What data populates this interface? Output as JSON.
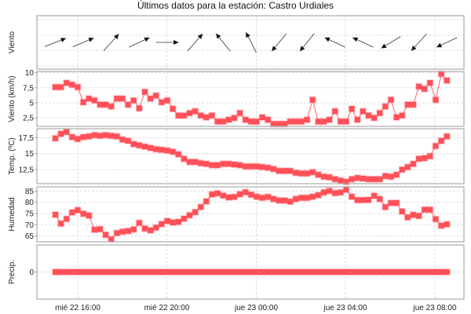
{
  "title": "Últimos datos para la estación: Castro Urdiales",
  "colors": {
    "series": "#ff5058",
    "line": "#ff7a80",
    "border": "#aaaaaa",
    "grid": "#dddddd"
  },
  "chart_data": {
    "type": "line",
    "grid": true,
    "x_ticks": [
      "mié 22 16:00",
      "mié 22 20:00",
      "jue 23 00:00",
      "jue 23 04:00",
      "jue 23 08:00"
    ],
    "x": [
      "mié 22 15:00",
      "mié 22 15:15",
      "mié 22 15:30",
      "mié 22 15:45",
      "mié 22 16:00",
      "mié 22 16:15",
      "mié 22 16:30",
      "mié 22 16:45",
      "mié 22 17:00",
      "mié 22 17:15",
      "mié 22 17:30",
      "mié 22 17:45",
      "mié 22 18:00",
      "mié 22 18:15",
      "mié 22 18:30",
      "mié 22 18:45",
      "mié 22 19:00",
      "mié 22 19:15",
      "mié 22 19:30",
      "mié 22 19:45",
      "mié 22 20:00",
      "mié 22 20:15",
      "mié 22 20:30",
      "mié 22 20:45",
      "mié 22 21:00",
      "mié 22 21:15",
      "mié 22 21:30",
      "mié 22 21:45",
      "mié 22 22:00",
      "mié 22 22:15",
      "mié 22 22:30",
      "mié 22 22:45",
      "mié 22 23:00",
      "mié 22 23:15",
      "mié 22 23:30",
      "mié 22 23:45",
      "jue 23 00:00",
      "jue 23 00:15",
      "jue 23 00:30",
      "jue 23 00:45",
      "jue 23 01:00",
      "jue 23 01:15",
      "jue 23 01:30",
      "jue 23 01:45",
      "jue 23 02:00",
      "jue 23 02:15",
      "jue 23 02:30",
      "jue 23 02:45",
      "jue 23 03:00",
      "jue 23 03:15",
      "jue 23 03:30",
      "jue 23 03:45",
      "jue 23 04:00",
      "jue 23 04:15",
      "jue 23 04:30",
      "jue 23 04:45",
      "jue 23 05:00",
      "jue 23 05:15",
      "jue 23 05:30",
      "jue 23 05:45",
      "jue 23 06:00",
      "jue 23 06:15",
      "jue 23 06:30",
      "jue 23 06:45",
      "jue 23 07:00",
      "jue 23 07:15",
      "jue 23 07:30",
      "jue 23 07:45",
      "jue 23 08:00",
      "jue 23 08:15",
      "jue 23 08:30"
    ],
    "panels": [
      {
        "ylabel": "Viento",
        "kind": "wind-direction",
        "direction_times": [
          "mié 22 15:00",
          "mié 22 16:15",
          "mié 22 17:30",
          "mié 22 18:45",
          "mié 22 20:00",
          "mié 22 21:15",
          "mié 22 22:30",
          "mié 22 23:45",
          "jue 23 01:00",
          "jue 23 02:15",
          "jue 23 03:30",
          "jue 23 04:45",
          "jue 23 06:00",
          "jue 23 07:15",
          "jue 23 08:30"
        ],
        "direction_deg_from": [
          249,
          247,
          222,
          245,
          270,
          221,
          141,
          153,
          40,
          39,
          115,
          115,
          59,
          42,
          65
        ]
      },
      {
        "ylabel": "Viento (km/h)",
        "ylim": [
          1.1,
          10.2
        ],
        "y_ticks": [
          "2,5",
          "5",
          "7,5",
          "10"
        ],
        "y_tick_values": [
          2.5,
          5,
          7.5,
          10
        ],
        "values": [
          7.6,
          7.6,
          8.3,
          8.0,
          7.6,
          5.1,
          5.7,
          5.4,
          4.7,
          4.7,
          4.4,
          5.7,
          5.7,
          4.7,
          5.4,
          4.1,
          6.8,
          5.7,
          6.2,
          5.1,
          5.4,
          4.0,
          2.9,
          2.9,
          3.3,
          3.6,
          2.9,
          2.6,
          2.9,
          1.9,
          1.9,
          2.2,
          2.5,
          3.3,
          2.2,
          1.9,
          1.9,
          2.6,
          2.2,
          1.5,
          1.5,
          1.5,
          1.9,
          1.9,
          1.9,
          2.2,
          5.5,
          1.9,
          1.9,
          2.2,
          3.6,
          1.9,
          1.9,
          4.0,
          2.2,
          3.6,
          2.9,
          2.5,
          3.3,
          4.4,
          5.5,
          2.6,
          2.9,
          4.7,
          4.7,
          7.7,
          7.3,
          8.3,
          5.5,
          9.8,
          8.7
        ]
      },
      {
        "ylabel": "Temp. (ºC)",
        "ylim": [
          10.3,
          18.9
        ],
        "y_ticks": [
          "12,5",
          "15",
          "17,5"
        ],
        "y_tick_values": [
          12.5,
          15,
          17.5
        ],
        "values": [
          17.4,
          18.1,
          18.4,
          17.6,
          17.3,
          17.6,
          17.7,
          17.9,
          17.8,
          17.9,
          17.8,
          17.7,
          17.2,
          17.0,
          16.5,
          16.3,
          16.1,
          15.9,
          15.7,
          15.6,
          15.5,
          15.3,
          14.9,
          14.2,
          13.7,
          13.7,
          13.5,
          13.4,
          13.2,
          13.2,
          13.4,
          13.4,
          13.3,
          13.2,
          13.0,
          13.0,
          13.0,
          12.9,
          12.8,
          12.6,
          12.3,
          12.3,
          12.3,
          12.0,
          11.9,
          11.9,
          12.1,
          11.7,
          11.4,
          11.3,
          11.0,
          10.8,
          10.6,
          11.0,
          11.2,
          11.1,
          11.0,
          11.0,
          11.0,
          11.5,
          11.4,
          11.7,
          12.5,
          12.9,
          13.4,
          14.2,
          14.3,
          14.6,
          16.2,
          17.0,
          17.7
        ]
      },
      {
        "ylabel": "Humedad",
        "ylim": [
          62.4,
          86.9
        ],
        "y_ticks": [
          "65",
          "70",
          "75",
          "80",
          "85"
        ],
        "y_tick_values": [
          65,
          70,
          75,
          80,
          85
        ],
        "values": [
          74.5,
          70.5,
          72.6,
          75.5,
          76.5,
          74.9,
          74.1,
          67.8,
          68.0,
          65.5,
          63.5,
          66.3,
          66.9,
          67.2,
          67.9,
          70.8,
          68.3,
          67.5,
          68.7,
          70.3,
          71.7,
          71.0,
          71.3,
          72.7,
          74.2,
          75.6,
          77.9,
          80.4,
          83.5,
          84.0,
          83.0,
          82.2,
          82.4,
          83.6,
          84.5,
          83.4,
          82.5,
          82.0,
          82.4,
          81.5,
          80.8,
          80.8,
          80.3,
          81.5,
          82.0,
          82.0,
          82.5,
          83.2,
          84.4,
          85.1,
          84.1,
          84.4,
          85.6,
          82.5,
          81.0,
          81.0,
          81.1,
          82.9,
          81.5,
          77.9,
          79.7,
          79.7,
          75.9,
          73.3,
          74.4,
          73.9,
          76.7,
          76.7,
          72.5,
          69.6,
          70.2
        ]
      },
      {
        "ylabel": "Precip.",
        "ylim": [
          -1,
          1
        ],
        "y_ticks": [
          "0"
        ],
        "y_tick_values": [
          0
        ],
        "values": [
          0,
          0,
          0,
          0,
          0,
          0,
          0,
          0,
          0,
          0,
          0,
          0,
          0,
          0,
          0,
          0,
          0,
          0,
          0,
          0,
          0,
          0,
          0,
          0,
          0,
          0,
          0,
          0,
          0,
          0,
          0,
          0,
          0,
          0,
          0,
          0,
          0,
          0,
          0,
          0,
          0,
          0,
          0,
          0,
          0,
          0,
          0,
          0,
          0,
          0,
          0,
          0,
          0,
          0,
          0,
          0,
          0,
          0,
          0,
          0,
          0,
          0,
          0,
          0,
          0,
          0,
          0,
          0,
          0,
          0,
          0
        ]
      }
    ]
  }
}
